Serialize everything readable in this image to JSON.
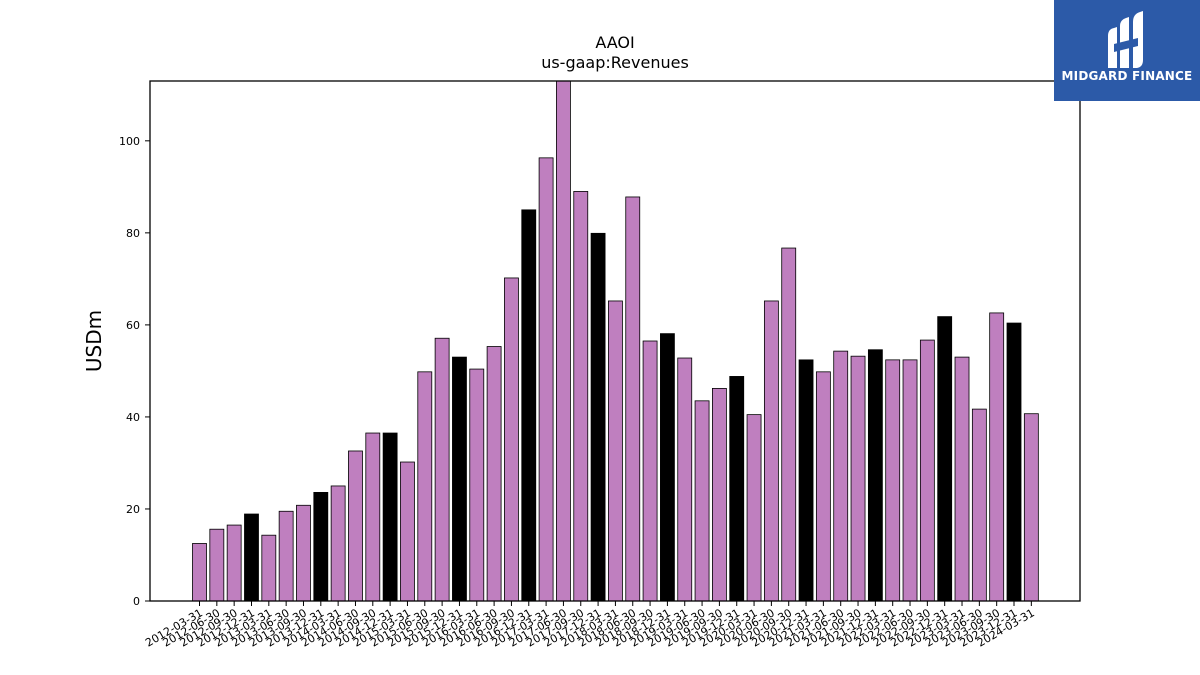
{
  "logo": {
    "text": "MIDGARD FINANCE",
    "background": "#2c5aa8"
  },
  "chart_data": {
    "type": "bar",
    "title": "AAOI",
    "subtitle": "us-gaap:Revenues",
    "xlabel": "",
    "ylabel": "USDm",
    "ylim": [
      0,
      113
    ],
    "yticks": [
      0,
      20,
      40,
      60,
      80,
      100
    ],
    "grid": false,
    "colors": {
      "quarter": "#bf7fbf",
      "fiscal_year_end": "#000000",
      "edge": "#000000"
    },
    "categories": [
      "2012-03-31",
      "2012-06-30",
      "2012-09-30",
      "2012-12-31",
      "2013-03-31",
      "2013-06-30",
      "2013-09-30",
      "2013-12-31",
      "2014-03-31",
      "2014-06-30",
      "2014-09-30",
      "2014-12-31",
      "2015-03-31",
      "2015-06-30",
      "2015-09-30",
      "2015-12-31",
      "2016-03-31",
      "2016-06-30",
      "2016-09-30",
      "2016-12-31",
      "2017-03-31",
      "2017-06-30",
      "2017-09-30",
      "2017-12-31",
      "2018-03-31",
      "2018-06-30",
      "2018-09-30",
      "2018-12-31",
      "2019-03-31",
      "2019-06-30",
      "2019-09-30",
      "2019-12-31",
      "2020-03-31",
      "2020-06-30",
      "2020-09-30",
      "2020-12-31",
      "2021-03-31",
      "2021-06-30",
      "2021-09-30",
      "2021-12-31",
      "2022-03-31",
      "2022-06-30",
      "2022-09-30",
      "2022-12-31",
      "2023-03-31",
      "2023-06-30",
      "2023-09-30",
      "2023-12-31",
      "2024-03-31"
    ],
    "values": [
      12.5,
      15.6,
      16.5,
      18.9,
      14.3,
      19.5,
      20.8,
      23.6,
      25.0,
      32.6,
      36.5,
      36.5,
      30.2,
      49.8,
      57.1,
      53.0,
      50.4,
      55.3,
      70.2,
      85.0,
      96.3,
      113.0,
      89.0,
      79.9,
      65.2,
      87.8,
      56.5,
      58.1,
      52.8,
      43.5,
      46.2,
      48.8,
      40.5,
      65.2,
      76.7,
      52.4,
      49.8,
      54.3,
      53.2,
      54.6,
      52.4,
      52.4,
      56.7,
      61.8,
      53.0,
      41.7,
      62.6,
      60.4,
      40.7
    ],
    "fiscal_year_end": [
      false,
      false,
      false,
      true,
      false,
      false,
      false,
      true,
      false,
      false,
      false,
      true,
      false,
      false,
      false,
      true,
      false,
      false,
      false,
      true,
      false,
      false,
      false,
      true,
      false,
      false,
      false,
      true,
      false,
      false,
      false,
      true,
      false,
      false,
      false,
      true,
      false,
      false,
      false,
      true,
      false,
      false,
      false,
      true,
      false,
      false,
      false,
      true,
      false
    ]
  }
}
